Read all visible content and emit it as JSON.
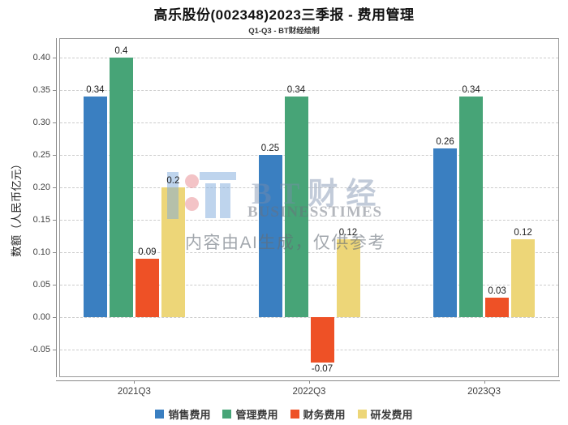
{
  "title": "高乐股份(002348)2023三季报 - 费用管理",
  "subtitle": "Q1-Q3 - BT财经绘制",
  "watermark": {
    "brand_cn": "BT财经",
    "brand_en": "BUSINESSTIMES",
    "disclaimer": "内容由AI生成，仅供参考"
  },
  "chart_data": {
    "type": "bar",
    "title": "高乐股份(002348)2023三季报 - 费用管理",
    "subtitle": "Q1-Q3 - BT财经绘制",
    "categories": [
      "2021Q3",
      "2022Q3",
      "2023Q3"
    ],
    "series": [
      {
        "name": "销售费用",
        "color": "#3a7fc1",
        "values": [
          0.34,
          0.25,
          0.26
        ]
      },
      {
        "name": "管理费用",
        "color": "#47a477",
        "values": [
          0.4,
          0.34,
          0.34
        ]
      },
      {
        "name": "财务费用",
        "color": "#ee5126",
        "values": [
          0.09,
          -0.07,
          0.03
        ]
      },
      {
        "name": "研发费用",
        "color": "#edd678",
        "values": [
          0.2,
          0.12,
          0.12
        ]
      }
    ],
    "xlabel": "",
    "ylabel": "数额（人民币亿元）",
    "ylim": [
      -0.0925,
      0.43
    ],
    "yticks": [
      0.4,
      0.35,
      0.3,
      0.25,
      0.2,
      0.15,
      0.1,
      0.05,
      0.0,
      -0.05
    ],
    "ytick_format": "2-decimals",
    "grid": "horizontal-dashed",
    "legend_position": "bottom",
    "bar_value_labels": true
  }
}
